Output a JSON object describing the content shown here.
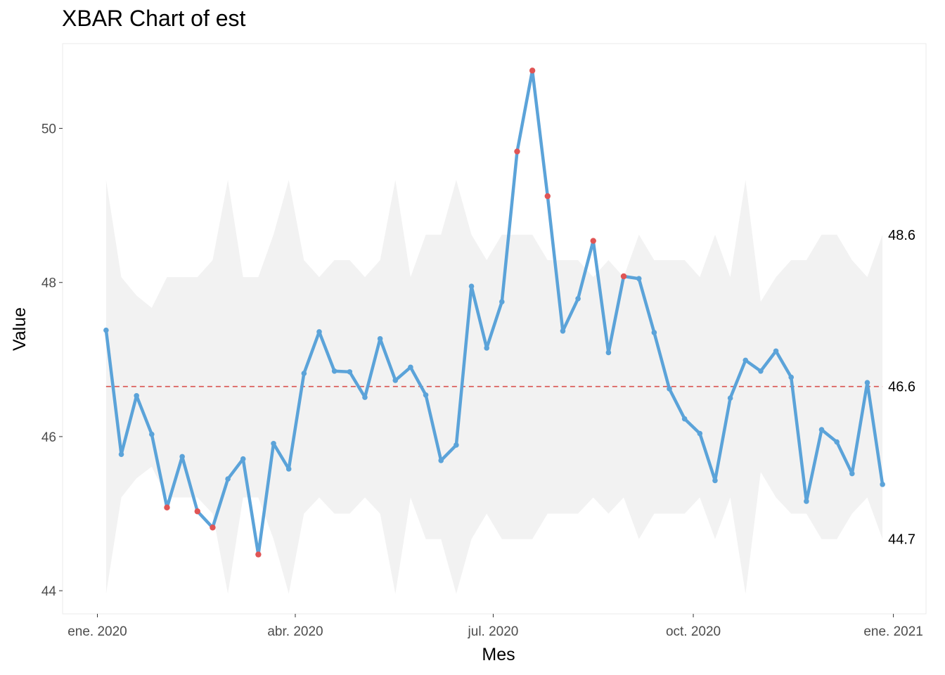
{
  "chart_data": {
    "type": "line",
    "title": "XBAR Chart of est",
    "xlabel": "Mes",
    "ylabel": "Value",
    "y_ticks": [
      44,
      46,
      48,
      50
    ],
    "ylim": [
      43.7,
      51.1
    ],
    "x_ticks": [
      {
        "date": "2020-01-01",
        "label": "ene. 2020"
      },
      {
        "date": "2020-04-01",
        "label": "abr. 2020"
      },
      {
        "date": "2020-07-01",
        "label": "jul. 2020"
      },
      {
        "date": "2020-10-01",
        "label": "oct. 2020"
      },
      {
        "date": "2021-01-01",
        "label": "ene. 2021"
      }
    ],
    "xlim": [
      "2019-12-16",
      "2021-01-16"
    ],
    "center_line": 46.65,
    "limit_labels": [
      "48.6",
      "46.6",
      "44.7"
    ],
    "grid": false,
    "series": [
      {
        "points": [
          {
            "x": "2020-01-05",
            "y": 47.38,
            "ucl": 49.33,
            "lcl": 43.96,
            "out": false
          },
          {
            "x": "2020-01-12",
            "y": 45.77,
            "ucl": 48.07,
            "lcl": 45.21,
            "out": false
          },
          {
            "x": "2020-01-19",
            "y": 46.53,
            "ucl": 47.83,
            "lcl": 45.46,
            "out": false
          },
          {
            "x": "2020-01-26",
            "y": 46.03,
            "ucl": 47.67,
            "lcl": 45.61,
            "out": false
          },
          {
            "x": "2020-02-02",
            "y": 45.08,
            "ucl": 48.07,
            "lcl": 45.21,
            "out": true
          },
          {
            "x": "2020-02-09",
            "y": 45.74,
            "ucl": 48.07,
            "lcl": 45.21,
            "out": false
          },
          {
            "x": "2020-02-16",
            "y": 45.03,
            "ucl": 48.07,
            "lcl": 45.21,
            "out": true
          },
          {
            "x": "2020-02-23",
            "y": 44.82,
            "ucl": 48.29,
            "lcl": 45.0,
            "out": true
          },
          {
            "x": "2020-03-01",
            "y": 45.45,
            "ucl": 49.33,
            "lcl": 43.96,
            "out": false
          },
          {
            "x": "2020-03-08",
            "y": 45.71,
            "ucl": 48.07,
            "lcl": 45.21,
            "out": false
          },
          {
            "x": "2020-03-15",
            "y": 44.47,
            "ucl": 48.07,
            "lcl": 45.21,
            "out": true
          },
          {
            "x": "2020-03-22",
            "y": 45.91,
            "ucl": 48.62,
            "lcl": 44.67,
            "out": false
          },
          {
            "x": "2020-03-29",
            "y": 45.58,
            "ucl": 49.33,
            "lcl": 43.96,
            "out": false
          },
          {
            "x": "2020-04-05",
            "y": 46.82,
            "ucl": 48.29,
            "lcl": 45.0,
            "out": false
          },
          {
            "x": "2020-04-12",
            "y": 47.36,
            "ucl": 48.07,
            "lcl": 45.21,
            "out": false
          },
          {
            "x": "2020-04-19",
            "y": 46.85,
            "ucl": 48.29,
            "lcl": 45.0,
            "out": false
          },
          {
            "x": "2020-04-26",
            "y": 46.84,
            "ucl": 48.29,
            "lcl": 45.0,
            "out": false
          },
          {
            "x": "2020-05-03",
            "y": 46.51,
            "ucl": 48.07,
            "lcl": 45.21,
            "out": false
          },
          {
            "x": "2020-05-10",
            "y": 47.27,
            "ucl": 48.29,
            "lcl": 45.0,
            "out": false
          },
          {
            "x": "2020-05-17",
            "y": 46.73,
            "ucl": 49.33,
            "lcl": 43.96,
            "out": false
          },
          {
            "x": "2020-05-24",
            "y": 46.9,
            "ucl": 48.07,
            "lcl": 45.21,
            "out": false
          },
          {
            "x": "2020-05-31",
            "y": 46.54,
            "ucl": 48.62,
            "lcl": 44.67,
            "out": false
          },
          {
            "x": "2020-06-07",
            "y": 45.69,
            "ucl": 48.62,
            "lcl": 44.67,
            "out": false
          },
          {
            "x": "2020-06-14",
            "y": 45.89,
            "ucl": 49.33,
            "lcl": 43.96,
            "out": false
          },
          {
            "x": "2020-06-21",
            "y": 47.95,
            "ucl": 48.62,
            "lcl": 44.67,
            "out": false
          },
          {
            "x": "2020-06-28",
            "y": 47.15,
            "ucl": 48.29,
            "lcl": 45.0,
            "out": false
          },
          {
            "x": "2020-07-05",
            "y": 47.75,
            "ucl": 48.62,
            "lcl": 44.67,
            "out": false
          },
          {
            "x": "2020-07-12",
            "y": 49.7,
            "ucl": 48.62,
            "lcl": 44.67,
            "out": true
          },
          {
            "x": "2020-07-19",
            "y": 50.75,
            "ucl": 48.62,
            "lcl": 44.67,
            "out": true
          },
          {
            "x": "2020-07-26",
            "y": 49.12,
            "ucl": 48.29,
            "lcl": 45.0,
            "out": true
          },
          {
            "x": "2020-08-02",
            "y": 47.37,
            "ucl": 48.29,
            "lcl": 45.0,
            "out": false
          },
          {
            "x": "2020-08-09",
            "y": 47.79,
            "ucl": 48.29,
            "lcl": 45.0,
            "out": false
          },
          {
            "x": "2020-08-16",
            "y": 48.54,
            "ucl": 48.07,
            "lcl": 45.21,
            "out": true
          },
          {
            "x": "2020-08-23",
            "y": 47.09,
            "ucl": 48.29,
            "lcl": 45.0,
            "out": false
          },
          {
            "x": "2020-08-30",
            "y": 48.08,
            "ucl": 48.07,
            "lcl": 45.21,
            "out": true
          },
          {
            "x": "2020-09-06",
            "y": 48.05,
            "ucl": 48.62,
            "lcl": 44.67,
            "out": false
          },
          {
            "x": "2020-09-13",
            "y": 47.35,
            "ucl": 48.29,
            "lcl": 45.0,
            "out": false
          },
          {
            "x": "2020-09-20",
            "y": 46.62,
            "ucl": 48.29,
            "lcl": 45.0,
            "out": false
          },
          {
            "x": "2020-09-27",
            "y": 46.23,
            "ucl": 48.29,
            "lcl": 45.0,
            "out": false
          },
          {
            "x": "2020-10-04",
            "y": 46.04,
            "ucl": 48.07,
            "lcl": 45.21,
            "out": false
          },
          {
            "x": "2020-10-11",
            "y": 45.43,
            "ucl": 48.62,
            "lcl": 44.67,
            "out": false
          },
          {
            "x": "2020-10-18",
            "y": 46.5,
            "ucl": 48.07,
            "lcl": 45.21,
            "out": false
          },
          {
            "x": "2020-10-25",
            "y": 46.99,
            "ucl": 49.33,
            "lcl": 43.96,
            "out": false
          },
          {
            "x": "2020-11-01",
            "y": 46.85,
            "ucl": 47.75,
            "lcl": 45.54,
            "out": false
          },
          {
            "x": "2020-11-08",
            "y": 47.11,
            "ucl": 48.07,
            "lcl": 45.21,
            "out": false
          },
          {
            "x": "2020-11-15",
            "y": 46.77,
            "ucl": 48.29,
            "lcl": 45.0,
            "out": false
          },
          {
            "x": "2020-11-22",
            "y": 45.16,
            "ucl": 48.29,
            "lcl": 45.0,
            "out": false
          },
          {
            "x": "2020-11-29",
            "y": 46.09,
            "ucl": 48.62,
            "lcl": 44.67,
            "out": false
          },
          {
            "x": "2020-12-06",
            "y": 45.93,
            "ucl": 48.62,
            "lcl": 44.67,
            "out": false
          },
          {
            "x": "2020-12-13",
            "y": 45.52,
            "ucl": 48.29,
            "lcl": 45.0,
            "out": false
          },
          {
            "x": "2020-12-20",
            "y": 46.7,
            "ucl": 48.07,
            "lcl": 45.21,
            "out": false
          },
          {
            "x": "2020-12-27",
            "y": 45.38,
            "ucl": 48.62,
            "lcl": 44.67,
            "out": false
          }
        ]
      }
    ],
    "colors": {
      "line": "#5ba3d9",
      "out_of_control": "#e05555",
      "center_line": "#d9534f",
      "band": "#f2f2f2",
      "panel_border": "#ebebeb"
    }
  }
}
